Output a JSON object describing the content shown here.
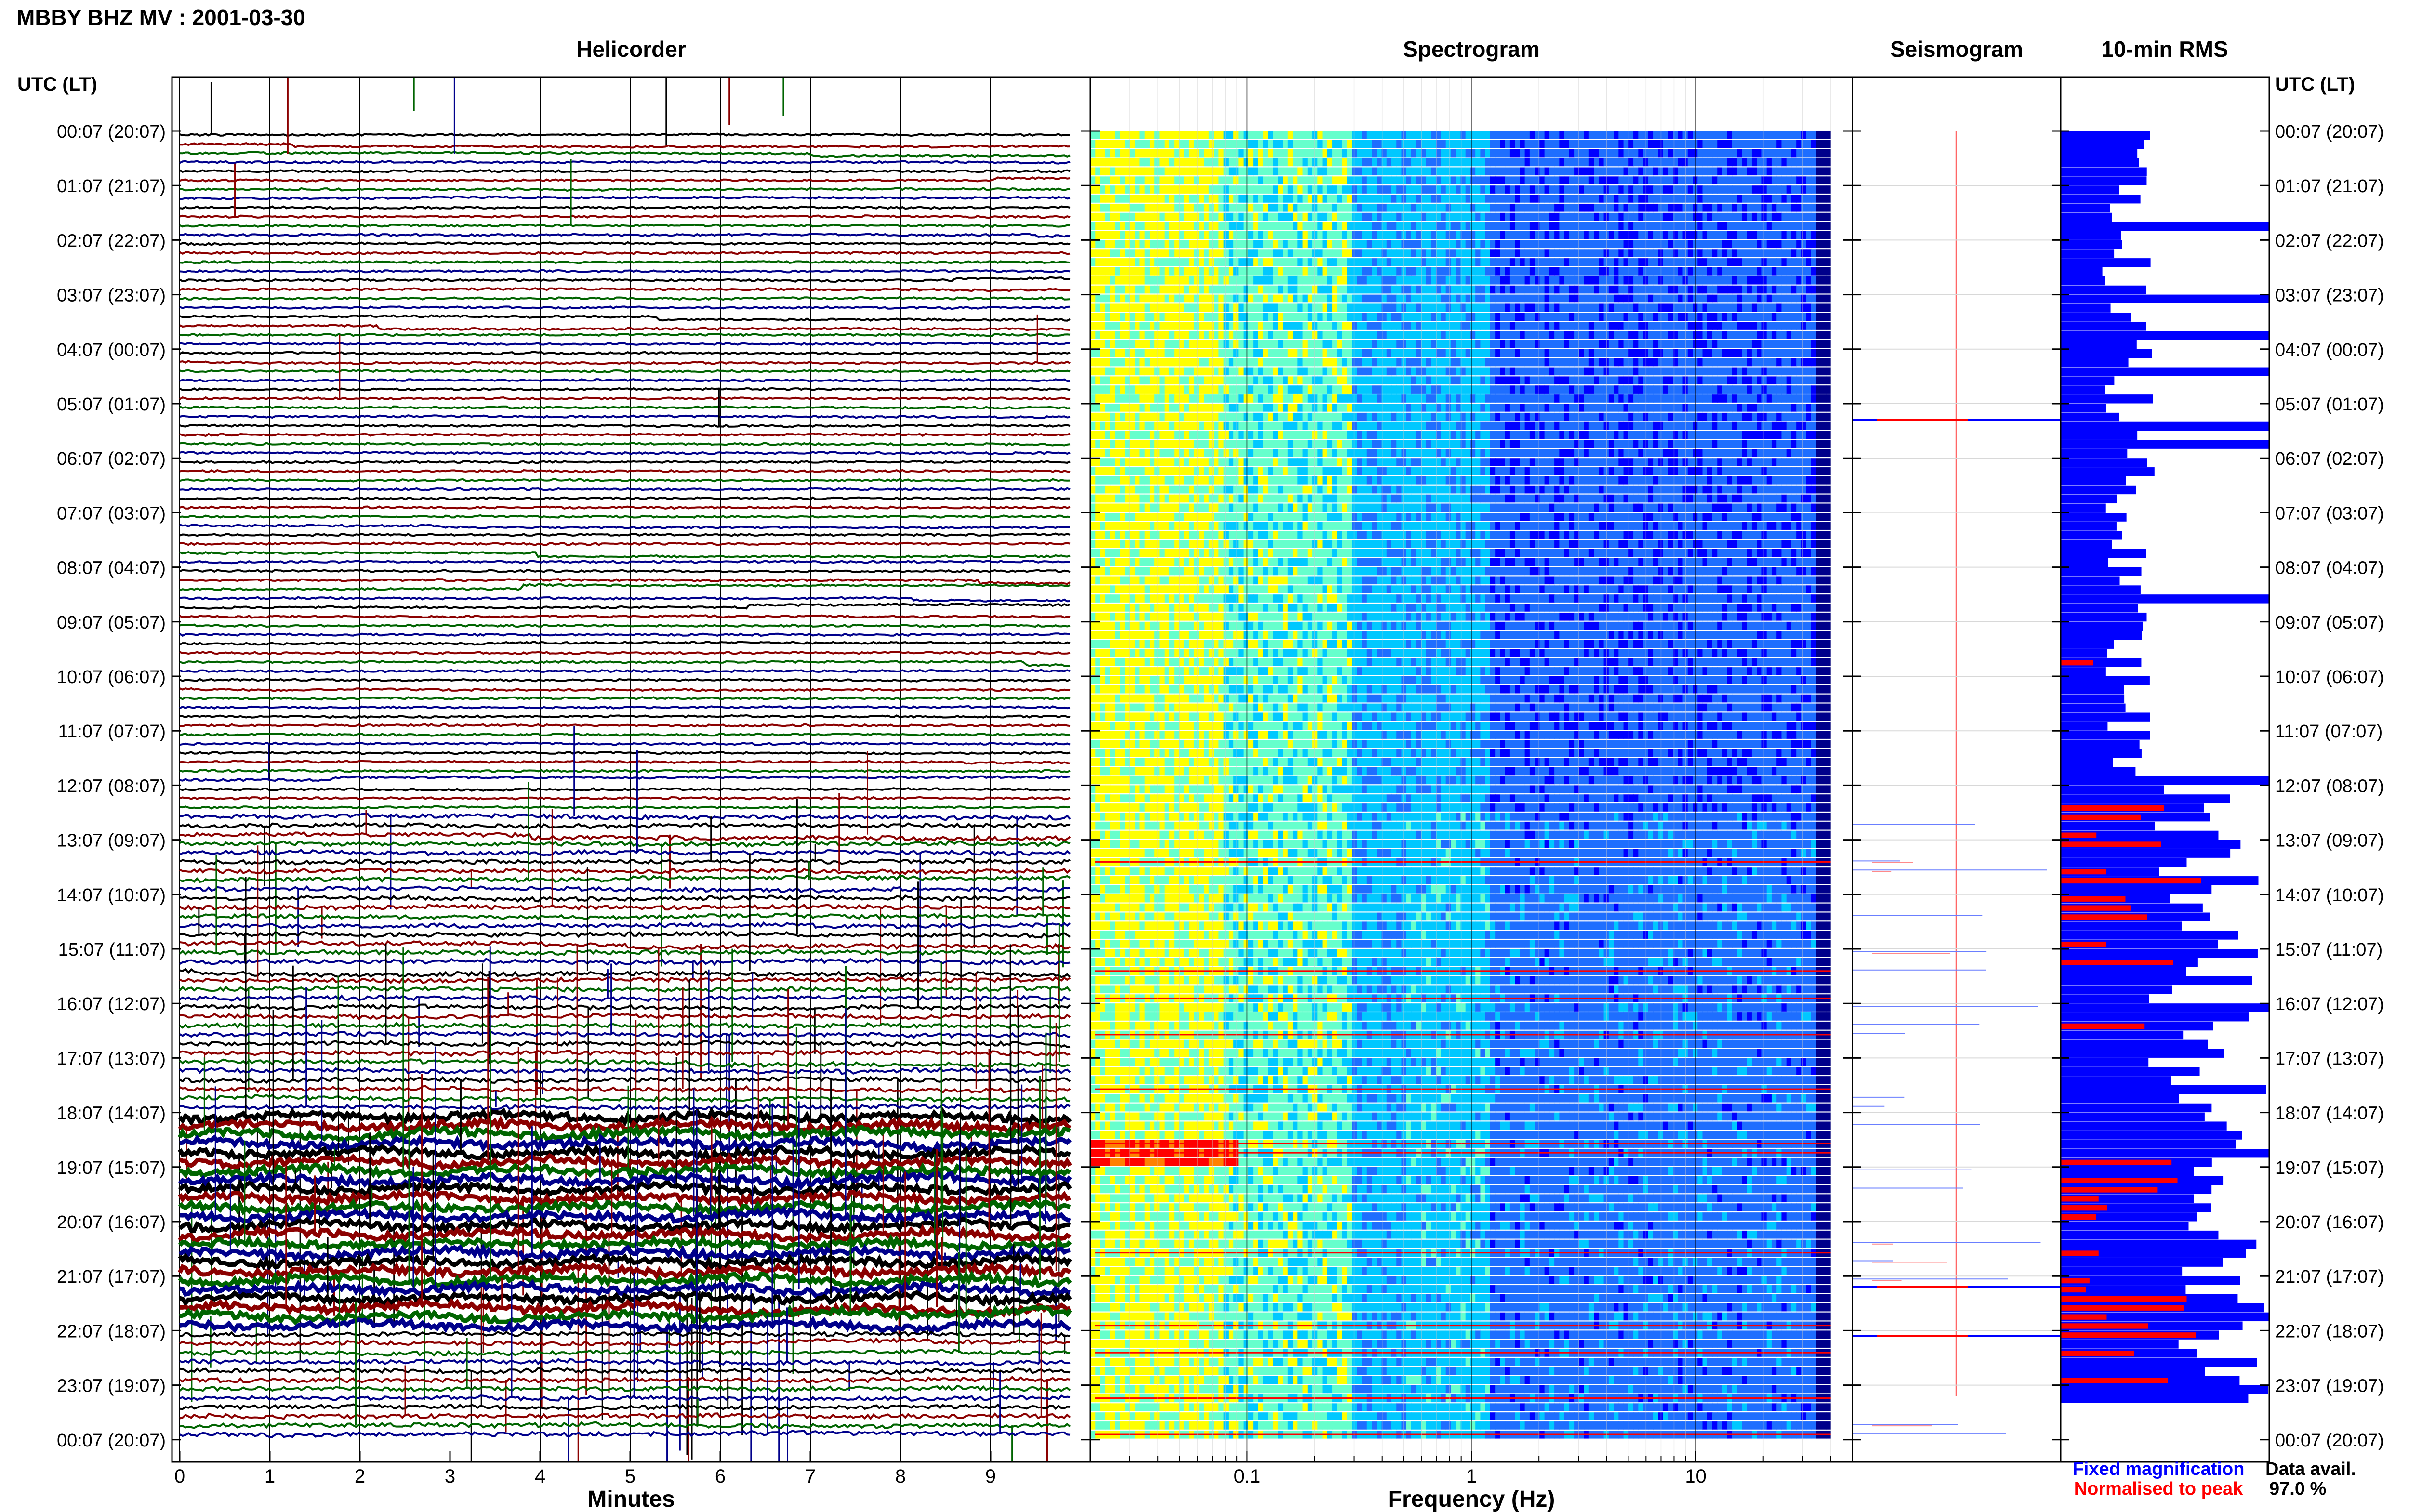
{
  "title": "MBBY BHZ MV : 2001-03-30",
  "time_axis_label": "UTC (LT)",
  "panels": {
    "helicorder": "Helicorder",
    "spectrogram": "Spectrogram",
    "seismogram": "Seismogram",
    "rms": "10-min RMS"
  },
  "legend": {
    "fixed": "Fixed magnification",
    "normalised": "Normalised to peak",
    "fixed_color": "#0000ff",
    "normalised_color": "#ff0000"
  },
  "data_availability": {
    "label": "Data avail.",
    "value": "97.0 %"
  },
  "colors": {
    "trace_cycle": [
      "#000000",
      "#8b0000",
      "#006400",
      "#00008b"
    ],
    "rms_fixed": "#0000ff",
    "rms_normalised": "#ff0000"
  },
  "chart_data": [
    {
      "type": "line",
      "title": "Helicorder",
      "xlabel": "Minutes",
      "x_ticks": [
        "0",
        "1",
        "2",
        "3",
        "4",
        "5",
        "6",
        "7",
        "8",
        "9"
      ],
      "xlim": [
        0,
        10
      ],
      "time_labels": [
        "00:07 (20:07)",
        "01:07 (21:07)",
        "02:07 (22:07)",
        "03:07 (23:07)",
        "04:07 (00:07)",
        "05:07 (01:07)",
        "06:07 (02:07)",
        "07:07 (03:07)",
        "08:07 (04:07)",
        "09:07 (05:07)",
        "10:07 (06:07)",
        "11:07 (07:07)",
        "12:07 (08:07)",
        "13:07 (09:07)",
        "14:07 (10:07)",
        "15:07 (11:07)",
        "16:07 (12:07)",
        "17:07 (13:07)",
        "18:07 (14:07)",
        "19:07 (15:07)",
        "20:07 (16:07)",
        "21:07 (17:07)",
        "22:07 (18:07)",
        "23:07 (19:07)",
        "00:07 (20:07)"
      ],
      "rows": 144,
      "row_minutes": 10,
      "active_from_hour": 12.5,
      "strong_from_hour": 18,
      "end_minutes": 9.9
    },
    {
      "type": "heatmap",
      "title": "Spectrogram",
      "xlabel": "Frequency (Hz)",
      "x_scale": "log",
      "xlim": [
        0.02,
        50
      ],
      "x_ticks": [
        "0.1",
        "1",
        "10"
      ],
      "x_tick_values": [
        0.1,
        1,
        10
      ],
      "f_max_hz": 40,
      "colormap": [
        "#00008b",
        "#0000ff",
        "#1e6eff",
        "#00c8ff",
        "#66ffcc",
        "#ffff00",
        "#ff8000",
        "#ff0000"
      ],
      "grid": true,
      "rows": 144
    },
    {
      "type": "line",
      "title": "Seismogram",
      "rows": 144
    },
    {
      "type": "bar",
      "orientation": "horizontal",
      "title": "10-min RMS",
      "series": [
        {
          "name": "Fixed magnification",
          "color": "#0000ff"
        },
        {
          "name": "Normalised to peak",
          "color": "#ff0000"
        }
      ],
      "rows": 144
    }
  ]
}
